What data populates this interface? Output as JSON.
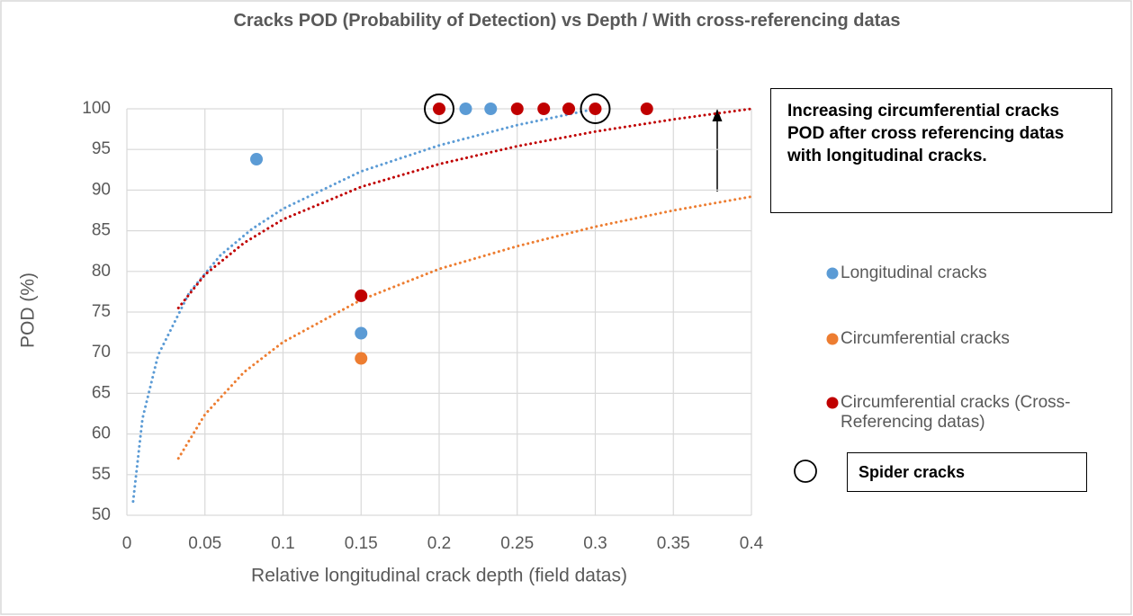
{
  "chart_data": {
    "type": "scatter",
    "title": "Cracks POD (Probability of Detection) vs Depth / With cross-referencing datas",
    "xlabel": "Relative longitudinal crack depth (field datas)",
    "ylabel": "POD (%)",
    "xlim": [
      0,
      0.4
    ],
    "ylim": [
      50,
      100
    ],
    "xticks": [
      0,
      0.05,
      0.1,
      0.15,
      0.2,
      0.25,
      0.3,
      0.35,
      0.4
    ],
    "yticks": [
      50,
      55,
      60,
      65,
      70,
      75,
      80,
      85,
      90,
      95,
      100
    ],
    "grid": true,
    "legend": "right",
    "series": [
      {
        "name": "Longitudinal cracks",
        "color": "#5b9bd5",
        "x": [
          0.083,
          0.15,
          0.217,
          0.233
        ],
        "values": [
          93.8,
          72.4,
          100,
          100
        ]
      },
      {
        "name": "Circumferential cracks",
        "color": "#ed7d31",
        "x": [
          0.15
        ],
        "values": [
          69.3
        ]
      },
      {
        "name": "Circumferential cracks (Cross-Referencing datas)",
        "color": "#c00000",
        "x": [
          0.15,
          0.2,
          0.25,
          0.267,
          0.283,
          0.3,
          0.333
        ],
        "values": [
          77,
          100,
          100,
          100,
          100,
          100,
          100
        ]
      }
    ],
    "trendlines": [
      {
        "color": "#5b9bd5",
        "x": [
          0.004,
          0.01,
          0.02,
          0.04,
          0.06,
          0.08,
          0.1,
          0.15,
          0.2,
          0.25,
          0.3
        ],
        "values": [
          51.7,
          61.9,
          69.7,
          77.4,
          82.0,
          85.2,
          87.7,
          92.3,
          95.5,
          98.0,
          100.0
        ]
      },
      {
        "color": "#ed7d31",
        "x": [
          0.033,
          0.05,
          0.075,
          0.1,
          0.15,
          0.2,
          0.25,
          0.3,
          0.35,
          0.4
        ],
        "values": [
          57.0,
          62.4,
          67.6,
          71.3,
          76.5,
          80.3,
          83.1,
          85.5,
          87.5,
          89.2
        ]
      },
      {
        "color": "#c00000",
        "x": [
          0.033,
          0.05,
          0.075,
          0.1,
          0.15,
          0.2,
          0.25,
          0.3,
          0.35,
          0.4
        ],
        "values": [
          75.5,
          79.6,
          83.5,
          86.4,
          90.4,
          93.2,
          95.4,
          97.2,
          98.7,
          100
        ]
      }
    ],
    "highlight": {
      "name": "Spider cracks",
      "x": [
        0.2,
        0.3
      ],
      "values": [
        100,
        100
      ]
    },
    "annotation": "Increasing circumferential cracks POD after cross referencing datas with longitudinal cracks."
  }
}
